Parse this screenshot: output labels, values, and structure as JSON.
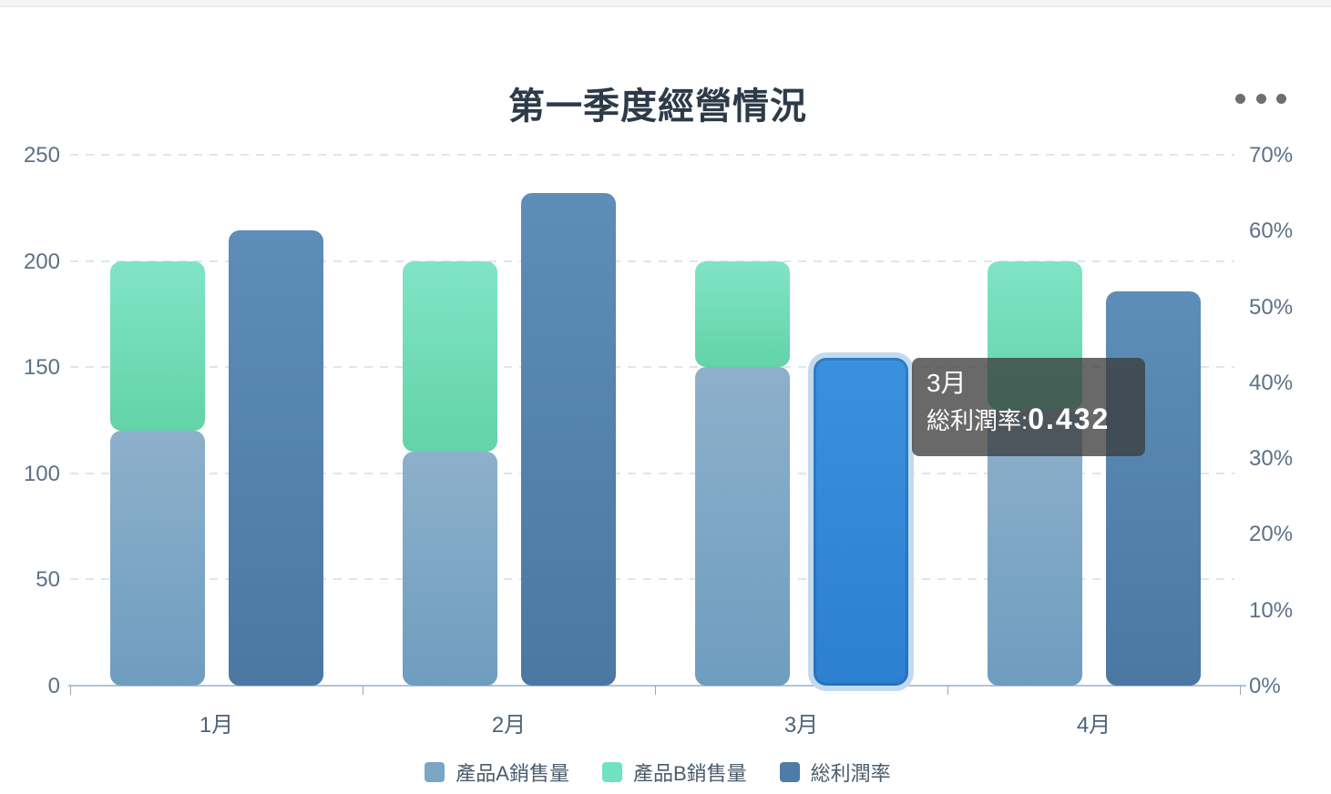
{
  "header": {
    "title": "第一季度經營情況",
    "menu_icon": "ellipsis-icon"
  },
  "chart_data": {
    "type": "bar",
    "title": "第一季度經營情況",
    "categories": [
      "1月",
      "2月",
      "3月",
      "4月"
    ],
    "series": [
      {
        "name": "產品A銷售量",
        "type": "bar",
        "stack": "sales",
        "axis": "left",
        "values": [
          120,
          110,
          150,
          130
        ],
        "color": "#7ba6c5"
      },
      {
        "name": "產品B銷售量",
        "type": "bar",
        "stack": "sales",
        "axis": "left",
        "values": [
          80,
          90,
          50,
          70
        ],
        "color": "#6fe3c1"
      },
      {
        "name": "総利潤率",
        "type": "bar",
        "axis": "right",
        "values": [
          0.6,
          0.65,
          0.432,
          0.52
        ],
        "color": "#4e7ca7"
      }
    ],
    "left_axis": {
      "ticks": [
        "0",
        "50",
        "100",
        "150",
        "200",
        "250"
      ],
      "min": 0,
      "max": 250
    },
    "right_axis": {
      "ticks": [
        "0%",
        "10%",
        "20%",
        "30%",
        "40%",
        "50%",
        "60%",
        "70%"
      ],
      "min": 0,
      "max": 0.7
    },
    "grid": "horizontal-dashed",
    "legend_position": "bottom",
    "highlight": {
      "category": "3月",
      "series": "総利潤率",
      "fill": "#3187d6",
      "border": "#c3daee"
    }
  },
  "tooltip": {
    "title": "3月",
    "label": "総利潤率:",
    "value": "0.432"
  }
}
